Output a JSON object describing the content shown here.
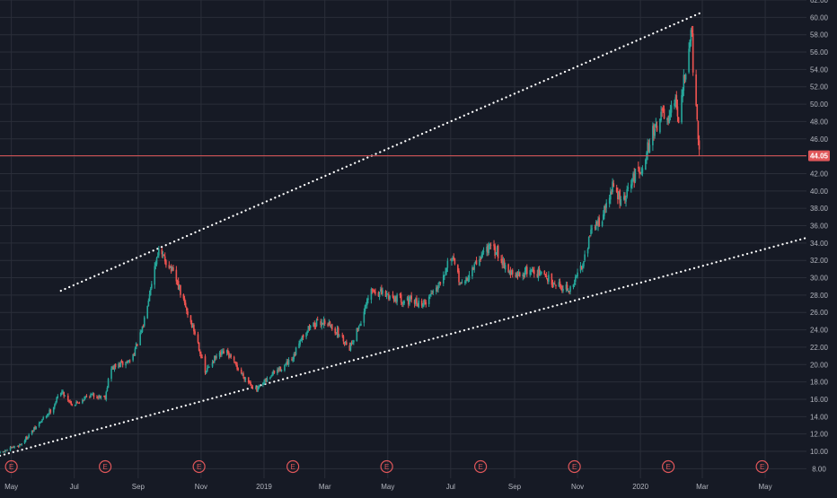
{
  "chart_data": {
    "type": "candlestick",
    "x_axis_labels": [
      {
        "date": "2018-05-01",
        "label": "May"
      },
      {
        "date": "2018-07-01",
        "label": "Jul"
      },
      {
        "date": "2018-09-01",
        "label": "Sep"
      },
      {
        "date": "2018-11-01",
        "label": "Nov"
      },
      {
        "date": "2019-01-01",
        "label": "2019"
      },
      {
        "date": "2019-03-01",
        "label": "Mar"
      },
      {
        "date": "2019-05-01",
        "label": "May"
      },
      {
        "date": "2019-07-01",
        "label": "Jul"
      },
      {
        "date": "2019-09-01",
        "label": "Sep"
      },
      {
        "date": "2019-11-01",
        "label": "Nov"
      },
      {
        "date": "2020-01-01",
        "label": "2020"
      },
      {
        "date": "2020-03-01",
        "label": "Mar"
      },
      {
        "date": "2020-05-01",
        "label": "May"
      }
    ],
    "x_range": [
      "2018-04-20",
      "2020-06-10"
    ],
    "y_axis": {
      "min": 6.9,
      "max": 62.0,
      "ticks": [
        8,
        10,
        12,
        14,
        16,
        18,
        20,
        22,
        24,
        26,
        28,
        30,
        32,
        34,
        36,
        38,
        40,
        42,
        44,
        46,
        48,
        50,
        52,
        54,
        56,
        58,
        60,
        62
      ],
      "decimals": 2
    },
    "grid": true,
    "price_line": {
      "value": 44.05,
      "label": "44.05",
      "color": "#e0575a"
    },
    "earnings_markers": {
      "label": "E",
      "dates": [
        "2018-05-01",
        "2018-07-31",
        "2018-10-30",
        "2019-01-29",
        "2019-04-30",
        "2019-07-30",
        "2019-10-29",
        "2020-01-28",
        "2020-04-28"
      ]
    },
    "trendlines": [
      {
        "name": "upper channel",
        "points": [
          [
            "2018-06-18",
            28.5
          ],
          [
            "2020-02-28",
            60.5
          ]
        ]
      },
      {
        "name": "lower channel",
        "points": [
          [
            "2018-04-20",
            9.5
          ],
          [
            "2020-06-10",
            34.6
          ]
        ]
      }
    ],
    "price_anchors": [
      [
        "2018-04-20",
        9.8
      ],
      [
        "2018-05-10",
        10.8
      ],
      [
        "2018-05-25",
        12.8
      ],
      [
        "2018-06-10",
        15.0
      ],
      [
        "2018-06-18",
        17.0
      ],
      [
        "2018-06-30",
        15.3
      ],
      [
        "2018-07-15",
        16.5
      ],
      [
        "2018-07-31",
        16.3
      ],
      [
        "2018-08-05",
        19.5
      ],
      [
        "2018-08-25",
        20.5
      ],
      [
        "2018-09-05",
        24.0
      ],
      [
        "2018-09-12",
        28.5
      ],
      [
        "2018-09-20",
        33.0
      ],
      [
        "2018-10-01",
        31.5
      ],
      [
        "2018-10-10",
        29.0
      ],
      [
        "2018-10-20",
        25.5
      ],
      [
        "2018-10-28",
        23.0
      ],
      [
        "2018-11-05",
        19.0
      ],
      [
        "2018-11-12",
        20.5
      ],
      [
        "2018-11-25",
        21.5
      ],
      [
        "2018-12-10",
        19.0
      ],
      [
        "2018-12-25",
        17.0
      ],
      [
        "2019-01-10",
        19.0
      ],
      [
        "2019-01-29",
        20.5
      ],
      [
        "2019-02-05",
        23.0
      ],
      [
        "2019-02-15",
        24.5
      ],
      [
        "2019-03-01",
        25.0
      ],
      [
        "2019-03-15",
        23.5
      ],
      [
        "2019-03-25",
        22.0
      ],
      [
        "2019-04-05",
        25.0
      ],
      [
        "2019-04-15",
        28.5
      ],
      [
        "2019-04-30",
        28.0
      ],
      [
        "2019-05-15",
        27.5
      ],
      [
        "2019-06-05",
        27.0
      ],
      [
        "2019-06-20",
        29.5
      ],
      [
        "2019-07-01",
        32.5
      ],
      [
        "2019-07-12",
        29.0
      ],
      [
        "2019-07-25",
        31.5
      ],
      [
        "2019-08-05",
        33.5
      ],
      [
        "2019-08-15",
        33.0
      ],
      [
        "2019-08-25",
        31.0
      ],
      [
        "2019-09-01",
        30.0
      ],
      [
        "2019-09-15",
        31.0
      ],
      [
        "2019-09-25",
        30.5
      ],
      [
        "2019-10-10",
        29.5
      ],
      [
        "2019-10-25",
        28.5
      ],
      [
        "2019-11-05",
        31.5
      ],
      [
        "2019-11-15",
        35.5
      ],
      [
        "2019-11-25",
        37.0
      ],
      [
        "2019-12-05",
        40.5
      ],
      [
        "2019-12-15",
        38.5
      ],
      [
        "2019-12-25",
        41.5
      ],
      [
        "2020-01-03",
        43.0
      ],
      [
        "2020-01-12",
        46.5
      ],
      [
        "2020-01-22",
        49.0
      ],
      [
        "2020-01-28",
        47.5
      ],
      [
        "2020-02-03",
        50.5
      ],
      [
        "2020-02-08",
        48.0
      ],
      [
        "2020-02-12",
        52.5
      ],
      [
        "2020-02-17",
        56.0
      ],
      [
        "2020-02-20",
        58.5
      ],
      [
        "2020-02-21",
        54.0
      ],
      [
        "2020-02-24",
        49.0
      ],
      [
        "2020-02-25",
        47.5
      ],
      [
        "2020-02-27",
        44.05
      ]
    ],
    "colors": {
      "up": "#26a69a",
      "down": "#ef5350",
      "grid": "#2a2e39",
      "axis_text": "#b2b5be",
      "marker": "#e0575a",
      "trendline": "#ffffff",
      "background": "#161a25"
    }
  }
}
